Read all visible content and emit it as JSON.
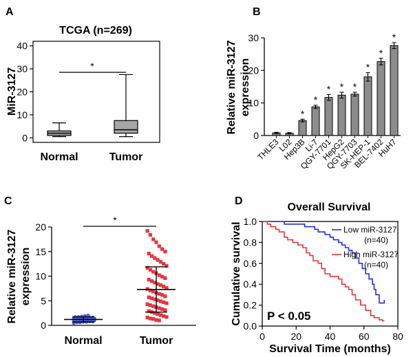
{
  "panel_labels": {
    "a": "A",
    "b": "B",
    "c": "C",
    "d": "D"
  },
  "chart_data": [
    {
      "panel": "A",
      "type": "box",
      "title": "TCGA (n=269)",
      "ylabel": "MiR-3127",
      "ylim": [
        -2,
        42
      ],
      "yticks": [
        "0",
        "10",
        "20",
        "30",
        "40"
      ],
      "categories": [
        "Normal",
        "Tumor"
      ],
      "boxes": [
        {
          "name": "Normal",
          "min": 0.5,
          "q1": 1,
          "median": 2,
          "q3": 3,
          "max": 6.5
        },
        {
          "name": "Tumor",
          "min": 0.5,
          "q1": 2,
          "median": 3.5,
          "q3": 7.5,
          "max": 27.5
        }
      ],
      "significance": "*",
      "box_color": "#a6a6a6"
    },
    {
      "panel": "B",
      "type": "bar",
      "ylabel_lines": [
        "Relative miR-3127",
        "expression"
      ],
      "ylim": [
        0,
        30
      ],
      "yticks": [
        "0",
        "10",
        "20",
        "30"
      ],
      "categories": [
        "THLE3",
        "L02",
        "Hep3B",
        "Li-7",
        "QGY-7701",
        "HepG2",
        "QGY-7703",
        "SK-HEP-1",
        "BEL-7402",
        "HuH7"
      ],
      "values": [
        0.8,
        0.7,
        4.6,
        8.8,
        11.7,
        12.4,
        12.7,
        18.0,
        22.7,
        27.6
      ],
      "errors": [
        0.2,
        0.2,
        0.4,
        0.5,
        0.9,
        0.9,
        0.6,
        1.3,
        1.0,
        0.9
      ],
      "stars": [
        "",
        "",
        "*",
        "*",
        "*",
        "*",
        "*",
        "*",
        "*",
        "*"
      ],
      "bar_color": "#8c8c8c"
    },
    {
      "panel": "C",
      "type": "scatter",
      "ylabel_lines": [
        "Relative miR-3127",
        "expression"
      ],
      "ylim": [
        0,
        20
      ],
      "yticks": [
        "0",
        "5",
        "10",
        "15",
        "20"
      ],
      "categories": [
        "Normal",
        "Tumor"
      ],
      "groups": [
        {
          "name": "Normal",
          "mean": 1.2,
          "sd_low": 0.7,
          "sd_high": 1.7,
          "color": "#4b5fd6",
          "values": [
            0.5,
            0.6,
            0.6,
            0.7,
            0.7,
            0.8,
            0.8,
            0.9,
            0.9,
            0.9,
            1.0,
            1.0,
            1.0,
            1.0,
            1.1,
            1.1,
            1.1,
            1.1,
            1.2,
            1.2,
            1.2,
            1.2,
            1.2,
            1.3,
            1.3,
            1.3,
            1.3,
            1.4,
            1.4,
            1.4,
            1.5,
            1.5,
            1.5,
            1.6,
            1.6,
            1.7,
            1.7,
            1.8,
            1.9,
            2.0
          ]
        },
        {
          "name": "Tumor",
          "mean": 7.3,
          "sd_low": 2.7,
          "sd_high": 11.9,
          "color": "#e8343f",
          "values": [
            19.2,
            18.4,
            17.5,
            16.9,
            16.1,
            15.5,
            15.0,
            14.6,
            14.1,
            13.7,
            13.3,
            12.9,
            12.5,
            12.1,
            11.7,
            11.3,
            10.9,
            10.6,
            10.2,
            9.9,
            9.6,
            9.3,
            9.0,
            8.7,
            8.4,
            8.2,
            7.9,
            7.6,
            7.4,
            7.1,
            6.9,
            6.6,
            6.4,
            6.2,
            5.9,
            5.7,
            5.5,
            5.3,
            5.1,
            4.9,
            4.7,
            4.5,
            4.3,
            4.1,
            3.9,
            3.7,
            3.5,
            3.3,
            3.1,
            2.9,
            2.7,
            2.5,
            2.3,
            2.1,
            1.9,
            1.7,
            1.6,
            1.4,
            1.3,
            1.1,
            1.0
          ]
        }
      ],
      "significance": "*"
    },
    {
      "panel": "D",
      "type": "line",
      "title": "Overall Survival",
      "xlabel": "Survival Time (months)",
      "ylabel": "Cumulative survival",
      "xlim": [
        0,
        80
      ],
      "ylim": [
        0,
        1.0
      ],
      "xticks": [
        "0",
        "20",
        "40",
        "60",
        "80"
      ],
      "yticks": [
        "0.0",
        "0.2",
        "0.4",
        "0.6",
        "0.8",
        "1.0"
      ],
      "annotation": "P < 0.05",
      "series": [
        {
          "name": "Low miR-3127",
          "note": "(n=40)",
          "color": "#1f2fe0",
          "points": [
            [
              0,
              1.0
            ],
            [
              13,
              1.0
            ],
            [
              13,
              0.975
            ],
            [
              25,
              0.975
            ],
            [
              25,
              0.95
            ],
            [
              31,
              0.95
            ],
            [
              31,
              0.925
            ],
            [
              33,
              0.925
            ],
            [
              33,
              0.9
            ],
            [
              37,
              0.9
            ],
            [
              37,
              0.875
            ],
            [
              40,
              0.875
            ],
            [
              40,
              0.85
            ],
            [
              42,
              0.85
            ],
            [
              42,
              0.825
            ],
            [
              45,
              0.825
            ],
            [
              45,
              0.8
            ],
            [
              47,
              0.8
            ],
            [
              47,
              0.775
            ],
            [
              49,
              0.775
            ],
            [
              49,
              0.75
            ],
            [
              51,
              0.75
            ],
            [
              51,
              0.725
            ],
            [
              53,
              0.725
            ],
            [
              53,
              0.7
            ],
            [
              55,
              0.7
            ],
            [
              55,
              0.65
            ],
            [
              57,
              0.65
            ],
            [
              57,
              0.6
            ],
            [
              59,
              0.6
            ],
            [
              59,
              0.55
            ],
            [
              61,
              0.55
            ],
            [
              61,
              0.5
            ],
            [
              63,
              0.5
            ],
            [
              63,
              0.45
            ],
            [
              65,
              0.45
            ],
            [
              65,
              0.4
            ],
            [
              66,
              0.4
            ],
            [
              66,
              0.35
            ],
            [
              67,
              0.35
            ],
            [
              67,
              0.3
            ],
            [
              69,
              0.3
            ],
            [
              69,
              0.22
            ],
            [
              72,
              0.22
            ],
            [
              72,
              0.25
            ]
          ]
        },
        {
          "name": "High miR-3127",
          "note": "(n=40)",
          "color": "#e8343f",
          "points": [
            [
              0,
              1.0
            ],
            [
              3,
              1.0
            ],
            [
              3,
              0.975
            ],
            [
              5,
              0.975
            ],
            [
              5,
              0.95
            ],
            [
              8,
              0.95
            ],
            [
              8,
              0.925
            ],
            [
              10,
              0.925
            ],
            [
              10,
              0.9
            ],
            [
              13,
              0.9
            ],
            [
              13,
              0.85
            ],
            [
              15,
              0.85
            ],
            [
              15,
              0.825
            ],
            [
              18,
              0.825
            ],
            [
              18,
              0.8
            ],
            [
              21,
              0.8
            ],
            [
              21,
              0.775
            ],
            [
              24,
              0.775
            ],
            [
              24,
              0.75
            ],
            [
              26,
              0.75
            ],
            [
              26,
              0.7
            ],
            [
              28,
              0.7
            ],
            [
              28,
              0.675
            ],
            [
              30,
              0.675
            ],
            [
              30,
              0.625
            ],
            [
              33,
              0.625
            ],
            [
              33,
              0.6
            ],
            [
              35,
              0.6
            ],
            [
              35,
              0.55
            ],
            [
              37,
              0.55
            ],
            [
              37,
              0.5
            ],
            [
              40,
              0.5
            ],
            [
              40,
              0.475
            ],
            [
              45,
              0.475
            ],
            [
              45,
              0.45
            ],
            [
              47,
              0.45
            ],
            [
              47,
              0.4
            ],
            [
              49,
              0.4
            ],
            [
              49,
              0.375
            ],
            [
              51,
              0.375
            ],
            [
              51,
              0.35
            ],
            [
              53,
              0.35
            ],
            [
              53,
              0.3
            ],
            [
              55,
              0.3
            ],
            [
              55,
              0.25
            ],
            [
              58,
              0.25
            ],
            [
              58,
              0.2
            ],
            [
              61,
              0.2
            ],
            [
              61,
              0.15
            ],
            [
              64,
              0.15
            ],
            [
              64,
              0.1
            ],
            [
              66,
              0.1
            ],
            [
              66,
              0.08
            ],
            [
              69,
              0.08
            ],
            [
              69,
              0.06
            ],
            [
              71,
              0.06
            ],
            [
              71,
              0.05
            ],
            [
              72,
              0.05
            ]
          ]
        }
      ]
    }
  ]
}
